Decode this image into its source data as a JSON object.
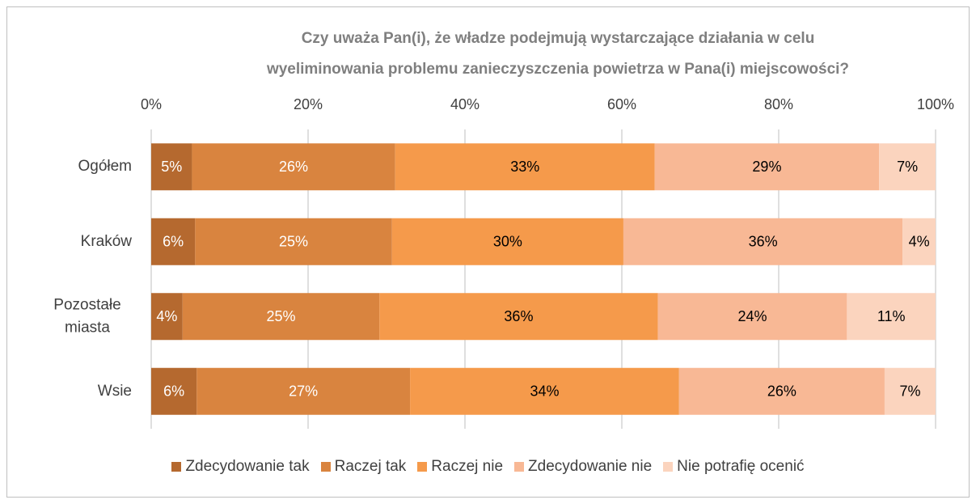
{
  "chart_data": {
    "type": "stacked_barh",
    "title": [
      "Czy uważa Pan(i), że władze podejmują wystarczające działania w celu",
      "wyeliminowania problemu zanieczyszczenia powietrza w Pana(i) miejscowości?"
    ],
    "categories": [
      "Ogółem",
      "Kraków",
      "Pozostałe miasta",
      "Wsie"
    ],
    "series": [
      {
        "name": "Zdecydowanie tak",
        "color": "#b5692f",
        "label_color": "#ffffff",
        "values": [
          5.2,
          5.6,
          4.0,
          5.8
        ],
        "value_labels": [
          "5%",
          "6%",
          "4%",
          "6%"
        ]
      },
      {
        "name": "Raczej tak",
        "color": "#d9843f",
        "label_color": "#ffffff",
        "values": [
          25.9,
          25.1,
          25.1,
          27.2
        ],
        "value_labels": [
          "26%",
          "25%",
          "25%",
          "27%"
        ]
      },
      {
        "name": "Raczej nie",
        "color": "#f59a4b",
        "label_color": "#000000",
        "values": [
          33.1,
          29.5,
          35.5,
          34.3
        ],
        "value_labels": [
          "33%",
          "30%",
          "36%",
          "34%"
        ]
      },
      {
        "name": "Zdecydowanie nie",
        "color": "#f8b895",
        "label_color": "#000000",
        "values": [
          28.6,
          35.6,
          24.1,
          26.2
        ],
        "value_labels": [
          "29%",
          "36%",
          "24%",
          "26%"
        ]
      },
      {
        "name": "Nie potrafię ocenić",
        "color": "#fbd4be",
        "label_color": "#000000",
        "values": [
          7.2,
          4.2,
          11.3,
          6.5
        ],
        "value_labels": [
          "7%",
          "4%",
          "11%",
          "7%"
        ]
      }
    ],
    "xlim": [
      0,
      100
    ],
    "xticks": [
      {
        "value": 0,
        "label": "0%"
      },
      {
        "value": 20,
        "label": "20%"
      },
      {
        "value": 40,
        "label": "40%"
      },
      {
        "value": 60,
        "label": "60%"
      },
      {
        "value": 80,
        "label": "80%"
      },
      {
        "value": 100,
        "label": "100%"
      }
    ],
    "grid": true,
    "legend": "bottom"
  }
}
